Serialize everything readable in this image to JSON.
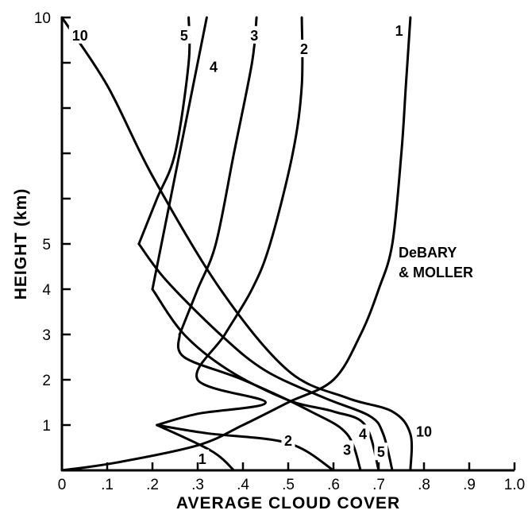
{
  "chart_data": {
    "type": "line",
    "title": "",
    "xlabel": "AVERAGE CLOUD COVER",
    "ylabel": "HEIGHT (km)",
    "xlim": [
      0,
      1.0
    ],
    "ylim": [
      0,
      10
    ],
    "x_ticks": [
      "0",
      ".1",
      ".2",
      ".3",
      ".4",
      ".5",
      ".6",
      ".7",
      ".8",
      ".9",
      "1.0"
    ],
    "y_ticks": [
      "1",
      "2",
      "3",
      "4",
      "5",
      "10"
    ],
    "grid": false,
    "annotation": [
      "DeBARY",
      "& MOLLER"
    ],
    "series": [
      {
        "name": "1",
        "points": [
          [
            0.0,
            0.0
          ],
          [
            0.12,
            0.17
          ],
          [
            0.3,
            0.55
          ],
          [
            0.4,
            1.0
          ],
          [
            0.5,
            1.5
          ],
          [
            0.6,
            2.0
          ],
          [
            0.66,
            3.0
          ],
          [
            0.7,
            4.0
          ],
          [
            0.73,
            5.0
          ],
          [
            0.75,
            7.0
          ],
          [
            0.76,
            8.5
          ],
          [
            0.77,
            10.0
          ]
        ],
        "label_pos": [
          0.745,
          9.7
        ]
      },
      {
        "name": "1",
        "points": [
          [
            0.21,
            1.0
          ],
          [
            0.33,
            0.43
          ],
          [
            0.38,
            0.0
          ]
        ],
        "label_pos": [
          0.31,
          0.25
        ]
      },
      {
        "name": "2",
        "points": [
          [
            0.21,
            1.0
          ],
          [
            0.3,
            1.25
          ],
          [
            0.45,
            1.5
          ],
          [
            0.3,
            2.0
          ],
          [
            0.36,
            3.0
          ],
          [
            0.42,
            4.0
          ],
          [
            0.46,
            5.0
          ],
          [
            0.51,
            7.0
          ],
          [
            0.53,
            8.5
          ],
          [
            0.53,
            10.0
          ]
        ],
        "label_pos": [
          0.535,
          9.3
        ]
      },
      {
        "name": "2",
        "points": [
          [
            0.21,
            1.0
          ],
          [
            0.32,
            0.82
          ],
          [
            0.5,
            0.6
          ],
          [
            0.6,
            0.0
          ]
        ],
        "label_pos": [
          0.5,
          0.65
        ]
      },
      {
        "name": "3",
        "points": [
          [
            0.26,
            3.0
          ],
          [
            0.27,
            2.5
          ],
          [
            0.4,
            2.0
          ],
          [
            0.55,
            1.3
          ],
          [
            0.63,
            0.8
          ],
          [
            0.66,
            0.0
          ]
        ],
        "label_pos": [
          0.63,
          0.45
        ]
      },
      {
        "name": "3",
        "points": [
          [
            0.26,
            3.0
          ],
          [
            0.3,
            4.0
          ],
          [
            0.34,
            5.0
          ],
          [
            0.38,
            7.0
          ],
          [
            0.42,
            9.0
          ],
          [
            0.43,
            10.0
          ]
        ],
        "label_pos": [
          0.425,
          9.6
        ]
      },
      {
        "name": "4",
        "points": [
          [
            0.2,
            4.0
          ],
          [
            0.27,
            3.0
          ],
          [
            0.37,
            2.2
          ],
          [
            0.5,
            1.55
          ],
          [
            0.6,
            1.3
          ],
          [
            0.67,
            1.0
          ],
          [
            0.7,
            0.0
          ]
        ],
        "label_pos": [
          0.665,
          0.8
        ]
      },
      {
        "name": "4",
        "points": [
          [
            0.2,
            4.0
          ],
          [
            0.22,
            5.0
          ],
          [
            0.26,
            7.0
          ],
          [
            0.3,
            9.0
          ],
          [
            0.32,
            10.0
          ]
        ],
        "label_pos": [
          0.335,
          8.9
        ]
      },
      {
        "name": "5",
        "points": [
          [
            0.17,
            5.0
          ],
          [
            0.23,
            4.2
          ],
          [
            0.35,
            3.0
          ],
          [
            0.45,
            2.2
          ],
          [
            0.58,
            1.6
          ],
          [
            0.68,
            1.2
          ],
          [
            0.71,
            0.8
          ],
          [
            0.73,
            0.0
          ]
        ],
        "label_pos": [
          0.705,
          0.4
        ]
      },
      {
        "name": "5",
        "points": [
          [
            0.17,
            5.0
          ],
          [
            0.21,
            6.0
          ],
          [
            0.25,
            7.0
          ],
          [
            0.28,
            9.0
          ],
          [
            0.28,
            10.0
          ]
        ],
        "label_pos": [
          0.27,
          9.6
        ]
      },
      {
        "name": "10",
        "points": [
          [
            0.0,
            10.0
          ],
          [
            0.1,
            8.5
          ],
          [
            0.2,
            6.5
          ],
          [
            0.35,
            4.0
          ],
          [
            0.5,
            2.2
          ],
          [
            0.63,
            1.6
          ],
          [
            0.73,
            1.3
          ],
          [
            0.77,
            0.8
          ],
          [
            0.77,
            0.0
          ]
        ],
        "label_pos": [
          0.8,
          0.85
        ]
      }
    ],
    "series_10_top_label_pos": [
      0.04,
      9.6
    ]
  }
}
